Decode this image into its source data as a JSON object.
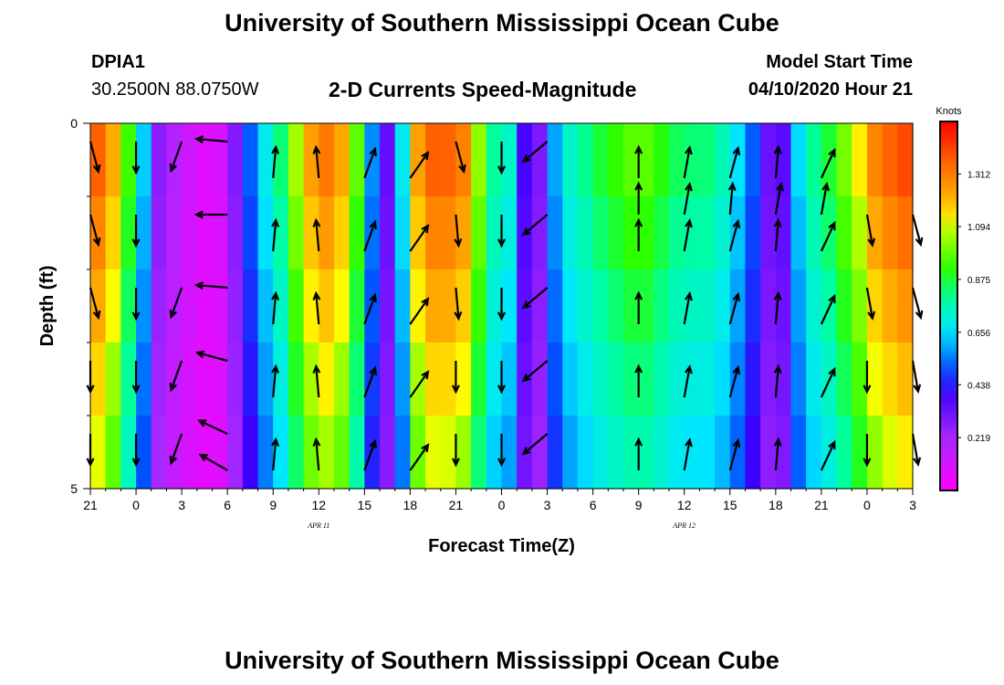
{
  "header": {
    "title": "University of Southern Mississippi Ocean Cube",
    "station": "DPIA1",
    "coords": "30.2500N 88.0750W",
    "subtitle": "2-D Currents Speed-Magnitude",
    "model_start_label": "Model Start Time",
    "model_start_value": "04/10/2020 Hour 21"
  },
  "footer": {
    "title": "University of Southern Mississippi Ocean Cube"
  },
  "chart_data": {
    "type": "heatmap",
    "title": "2-D Currents Speed-Magnitude",
    "xlabel": "Forecast Time(Z)",
    "ylabel": "Depth (ft)",
    "ylim": [
      0,
      5
    ],
    "y_ticks": [
      "0",
      "5"
    ],
    "x_ticks": [
      "21",
      "0",
      "3",
      "6",
      "9",
      "12",
      "15",
      "18",
      "21",
      "0",
      "3",
      "6",
      "9",
      "12",
      "15",
      "18",
      "21",
      "0",
      "3"
    ],
    "date_labels": [
      {
        "label": "APR 11",
        "x_index": 5
      },
      {
        "label": "APR 12",
        "x_index": 13
      }
    ],
    "colorbar": {
      "label": "Knots",
      "min": 0,
      "max": 1.53,
      "ticks": [
        "1.312",
        "1.094",
        "0.875",
        "0.656",
        "0.438",
        "0.219"
      ],
      "tick_values": [
        1.312,
        1.094,
        0.875,
        0.656,
        0.438,
        0.219
      ]
    },
    "depth_layers": 5,
    "hours_per_column": 1,
    "speed_profile_knots": [
      [
        0,
        1.42
      ],
      [
        1,
        1.33
      ],
      [
        2,
        1.2
      ],
      [
        3,
        0.95
      ],
      [
        4,
        0.8
      ],
      [
        4.5,
        0.5
      ],
      [
        5,
        0.32
      ],
      [
        6,
        0.22
      ],
      [
        8,
        0.12
      ],
      [
        10,
        0.05
      ],
      [
        11,
        0.18
      ],
      [
        12,
        0.35
      ],
      [
        13,
        0.55
      ],
      [
        14,
        0.68
      ],
      [
        15,
        0.78
      ],
      [
        16,
        0.95
      ],
      [
        17,
        1.15
      ],
      [
        18,
        1.28
      ],
      [
        19,
        1.32
      ],
      [
        20,
        1.25
      ],
      [
        21,
        1.12
      ],
      [
        22,
        0.75
      ],
      [
        23,
        0.45
      ],
      [
        24,
        0.32
      ],
      [
        25,
        0.65
      ],
      [
        26,
        1.2
      ],
      [
        27,
        1.35
      ],
      [
        28,
        1.38
      ],
      [
        29,
        1.35
      ],
      [
        30,
        1.3
      ],
      [
        31,
        1.1
      ],
      [
        32,
        0.7
      ],
      [
        33,
        0.95
      ],
      [
        34,
        0.6
      ],
      [
        35,
        0.35
      ],
      [
        36,
        0.28
      ],
      [
        37,
        0.55
      ],
      [
        38,
        0.7
      ],
      [
        39,
        0.78
      ],
      [
        40,
        0.82
      ],
      [
        41,
        0.88
      ],
      [
        42,
        0.92
      ],
      [
        43,
        0.95
      ],
      [
        44,
        1.0
      ],
      [
        45,
        0.95
      ],
      [
        46,
        0.9
      ],
      [
        47,
        0.85
      ],
      [
        48,
        0.82
      ],
      [
        49,
        0.85
      ],
      [
        50,
        0.8
      ],
      [
        51,
        0.75
      ],
      [
        52,
        0.65
      ],
      [
        53,
        0.55
      ],
      [
        54,
        0.35
      ],
      [
        55,
        0.3
      ],
      [
        56,
        0.4
      ],
      [
        57,
        0.7
      ],
      [
        58,
        0.8
      ],
      [
        59,
        0.85
      ],
      [
        60,
        0.95
      ],
      [
        61,
        1.05
      ],
      [
        62,
        1.15
      ],
      [
        63,
        1.3
      ],
      [
        64,
        1.35
      ],
      [
        65,
        1.4
      ],
      [
        66,
        1.42
      ]
    ],
    "vector_rows": [
      {
        "depth_ft": 0.25,
        "arrows": [
          [
            0,
            -75,
            1
          ],
          [
            3,
            -90,
            1
          ],
          [
            6,
            -110,
            1
          ],
          [
            9,
            175,
            1
          ],
          [
            24,
            -75,
            1
          ],
          [
            27,
            -90,
            1
          ],
          [
            30,
            -140,
            1
          ]
        ]
      },
      {
        "depth_ft": 0.75,
        "arrows": [
          [
            12,
            85,
            1
          ],
          [
            15,
            95,
            1
          ],
          [
            18,
            70,
            1
          ],
          [
            21,
            55,
            1
          ],
          [
            36,
            90,
            1
          ],
          [
            39,
            80,
            1
          ],
          [
            42,
            75,
            1
          ],
          [
            45,
            85,
            1
          ],
          [
            48,
            65,
            1
          ]
        ]
      },
      {
        "depth_ft": 1.25,
        "arrows": [
          [
            0,
            -75,
            1
          ],
          [
            3,
            -90,
            1
          ],
          [
            9,
            180,
            1
          ],
          [
            24,
            -85,
            1
          ],
          [
            27,
            -90,
            1
          ],
          [
            30,
            -140,
            1
          ],
          [
            36,
            90,
            1
          ],
          [
            39,
            80,
            1
          ],
          [
            42,
            85,
            1
          ],
          [
            45,
            80,
            1
          ],
          [
            48,
            80,
            1
          ],
          [
            51,
            -80,
            1
          ],
          [
            54,
            -75,
            1
          ]
        ]
      },
      {
        "depth_ft": 1.75,
        "arrows": [
          [
            12,
            85,
            1
          ],
          [
            15,
            95,
            1
          ],
          [
            18,
            70,
            1
          ],
          [
            21,
            55,
            1
          ],
          [
            36,
            90,
            1
          ],
          [
            39,
            80,
            1
          ],
          [
            42,
            75,
            1
          ],
          [
            45,
            85,
            1
          ],
          [
            48,
            65,
            1
          ]
        ]
      },
      {
        "depth_ft": 2.25,
        "arrows": [
          [
            0,
            -75,
            1
          ],
          [
            3,
            -90,
            1
          ],
          [
            6,
            -110,
            1
          ],
          [
            9,
            175,
            1
          ],
          [
            24,
            -85,
            1
          ],
          [
            27,
            -90,
            1
          ],
          [
            30,
            -140,
            1
          ],
          [
            51,
            -80,
            1
          ],
          [
            54,
            -75,
            1
          ]
        ]
      },
      {
        "depth_ft": 2.75,
        "arrows": [
          [
            12,
            85,
            1
          ],
          [
            15,
            95,
            1
          ],
          [
            18,
            70,
            1
          ],
          [
            21,
            55,
            1
          ],
          [
            36,
            90,
            1
          ],
          [
            39,
            80,
            1
          ],
          [
            42,
            75,
            1
          ],
          [
            45,
            85,
            1
          ],
          [
            48,
            65,
            1
          ]
        ]
      },
      {
        "depth_ft": 3.25,
        "arrows": [
          [
            0,
            -90,
            1
          ],
          [
            3,
            -90,
            1
          ],
          [
            6,
            -110,
            1
          ],
          [
            9,
            165,
            1
          ],
          [
            24,
            -90,
            1
          ],
          [
            27,
            -90,
            1
          ],
          [
            30,
            -140,
            1
          ],
          [
            51,
            -90,
            1
          ],
          [
            54,
            -80,
            1
          ]
        ]
      },
      {
        "depth_ft": 3.75,
        "arrows": [
          [
            12,
            85,
            1
          ],
          [
            15,
            95,
            1
          ],
          [
            18,
            70,
            1
          ],
          [
            21,
            55,
            1
          ],
          [
            36,
            90,
            1
          ],
          [
            39,
            80,
            1
          ],
          [
            42,
            75,
            1
          ],
          [
            45,
            85,
            1
          ],
          [
            48,
            65,
            1
          ]
        ]
      },
      {
        "depth_ft": 4.25,
        "arrows": [
          [
            0,
            -90,
            1
          ],
          [
            3,
            -90,
            1
          ],
          [
            6,
            -110,
            1
          ],
          [
            9,
            155,
            1
          ],
          [
            24,
            -90,
            1
          ],
          [
            27,
            -90,
            1
          ],
          [
            30,
            -140,
            1
          ],
          [
            51,
            -90,
            1
          ],
          [
            54,
            -80,
            1
          ]
        ]
      },
      {
        "depth_ft": 4.75,
        "arrows": [
          [
            9,
            150,
            1
          ],
          [
            12,
            85,
            1
          ],
          [
            15,
            95,
            1
          ],
          [
            18,
            70,
            1
          ],
          [
            21,
            55,
            1
          ],
          [
            36,
            90,
            1
          ],
          [
            39,
            80,
            1
          ],
          [
            42,
            75,
            1
          ],
          [
            45,
            85,
            1
          ],
          [
            48,
            65,
            1
          ]
        ]
      }
    ],
    "grid": false,
    "legend": "right"
  }
}
